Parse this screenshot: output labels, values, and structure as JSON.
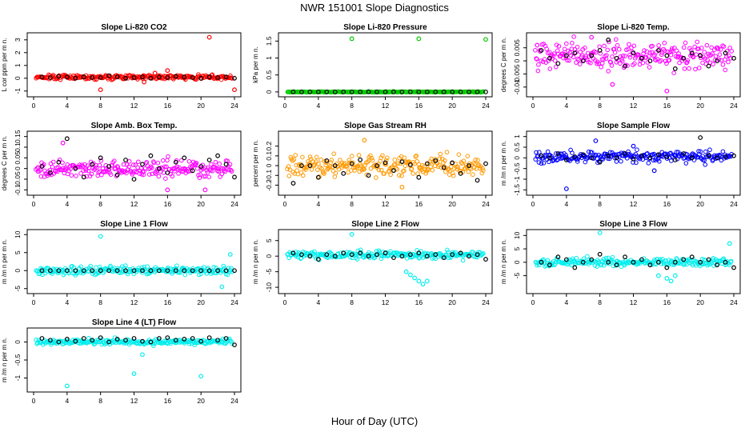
{
  "figure": {
    "title": "NWR  151001  Slope Diagnostics",
    "xlabel": "Hour of Day (UTC)"
  },
  "chart_data": [
    {
      "type": "scatter",
      "title": "Slope Li-820 CO2",
      "ylabel": "L cor ppm per m n.",
      "color": "#ff0000",
      "xlim": [
        0,
        24
      ],
      "ylim": [
        -1.2,
        3.3
      ],
      "yticks": [
        -1,
        0,
        1,
        2,
        3
      ],
      "xticks": [
        0,
        4,
        8,
        12,
        16,
        20,
        24
      ],
      "base": 0.1,
      "spread": 0.15,
      "series": [
        {
          "name": "individual",
          "x": [
            8,
            13.2,
            14.5,
            16,
            21,
            24
          ],
          "y": [
            -0.9,
            -0.3,
            0.4,
            0.6,
            3.2,
            -0.9
          ]
        },
        {
          "name": "hourly mean",
          "color": "#000000",
          "x": [
            1,
            2,
            3,
            4,
            5,
            6,
            7,
            8,
            9,
            10,
            11,
            12,
            13,
            14,
            15,
            16,
            17,
            18,
            19,
            20,
            21,
            22,
            23,
            24
          ],
          "y": [
            0.1,
            0.05,
            0.15,
            0.1,
            0.0,
            0.1,
            0.05,
            0.05,
            0.2,
            0.1,
            0.0,
            0.05,
            0.1,
            0.0,
            0.1,
            0.05,
            0.15,
            0.1,
            0.05,
            0.0,
            0.1,
            0.05,
            0.1,
            0.0
          ]
        }
      ]
    },
    {
      "type": "scatter",
      "title": "Slope Li-820 Pressure",
      "ylabel": "kPa per m n.",
      "color": "#00cc00",
      "xlim": [
        0,
        24
      ],
      "ylim": [
        -0.05,
        1.65
      ],
      "yticks": [
        0.0,
        0.5,
        1.0,
        1.5
      ],
      "xticks": [
        0,
        4,
        8,
        12,
        16,
        20,
        24
      ],
      "base": 0.0,
      "spread": 0.01,
      "series": [
        {
          "name": "individual",
          "x": [
            8,
            16,
            24
          ],
          "y": [
            1.57,
            1.57,
            1.55
          ]
        },
        {
          "name": "hourly mean",
          "color": "#000000",
          "x": [
            1,
            2,
            3,
            4,
            5,
            6,
            7,
            8,
            9,
            10,
            11,
            12,
            13,
            14,
            15,
            16,
            17,
            18,
            19,
            20,
            21,
            22,
            23,
            24
          ],
          "y": [
            0,
            0,
            0,
            0,
            0,
            0,
            0,
            0,
            0,
            0,
            0,
            0,
            0,
            0,
            0,
            0,
            0,
            0,
            0,
            0,
            0,
            0,
            0,
            0
          ]
        }
      ]
    },
    {
      "type": "scatter",
      "title": "Slope Li-820 Temp.",
      "ylabel": "degrees C per m n.",
      "color": "#ff00ff",
      "xlim": [
        0,
        24
      ],
      "ylim": [
        -0.0125,
        0.0095
      ],
      "yticks": [
        -0.01,
        -0.005,
        0.0,
        0.005
      ],
      "xticks": [
        0,
        4,
        8,
        12,
        16,
        20,
        24
      ],
      "base": 0.002,
      "spread": 0.004,
      "series": [
        {
          "name": "individual",
          "x": [
            7,
            9.5,
            16,
            0.5
          ],
          "y": [
            0.009,
            -0.009,
            -0.0115,
            0.006
          ]
        },
        {
          "name": "hourly mean",
          "color": "#000000",
          "x": [
            1,
            2,
            3,
            4,
            5,
            6,
            7,
            8,
            9,
            10,
            11,
            12,
            13,
            14,
            15,
            16,
            17,
            18,
            19,
            20,
            21,
            22,
            23,
            24
          ],
          "y": [
            0.004,
            0.001,
            -0.001,
            0.002,
            0.003,
            0.0,
            0.002,
            0.004,
            0.008,
            0.001,
            -0.002,
            0.003,
            0.001,
            0.0,
            0.004,
            0.002,
            -0.003,
            0.001,
            0.003,
            0.002,
            -0.002,
            0.0,
            0.003,
            0.001
          ]
        }
      ]
    },
    {
      "type": "scatter",
      "title": "Slope Amb. Box Temp.",
      "ylabel": "degrees C per m n.",
      "color": "#ff00ff",
      "xlim": [
        0,
        24
      ],
      "ylim": [
        -0.11,
        0.16
      ],
      "yticks": [
        -0.1,
        -0.05,
        0.0,
        0.05,
        0.1,
        0.15
      ],
      "xticks": [
        0,
        4,
        8,
        12,
        16,
        20,
        24
      ],
      "base": 0.0,
      "spread": 0.035,
      "series": [
        {
          "name": "individual",
          "x": [
            3.5,
            16,
            20.5
          ],
          "y": [
            0.12,
            -0.1,
            -0.1
          ]
        },
        {
          "name": "hourly mean",
          "color": "#000000",
          "x": [
            1,
            2,
            3,
            4,
            5,
            6,
            7,
            8,
            9,
            10,
            11,
            12,
            13,
            14,
            15,
            16,
            17,
            18,
            19,
            20,
            21,
            22,
            23,
            24
          ],
          "y": [
            0.01,
            -0.02,
            0.03,
            0.14,
            0.0,
            -0.04,
            0.02,
            0.05,
            0.01,
            -0.03,
            0.04,
            -0.05,
            0.02,
            0.06,
            0.0,
            -0.02,
            0.03,
            0.05,
            -0.01,
            0.01,
            0.04,
            0.06,
            0.02,
            -0.04
          ]
        }
      ]
    },
    {
      "type": "scatter",
      "title": "Slope Gas Stream RH",
      "ylabel": "percent per m n.",
      "color": "#ff9900",
      "xlim": [
        0,
        24
      ],
      "ylim": [
        -0.27,
        0.32
      ],
      "yticks": [
        -0.2,
        -0.1,
        0.0,
        0.1,
        0.2
      ],
      "xticks": [
        0,
        4,
        8,
        12,
        16,
        20,
        24
      ],
      "base": 0.0,
      "spread": 0.09,
      "series": [
        {
          "name": "individual",
          "x": [
            9.5,
            14
          ],
          "y": [
            0.26,
            -0.22
          ]
        },
        {
          "name": "hourly mean",
          "color": "#000000",
          "x": [
            1,
            2,
            3,
            4,
            5,
            6,
            7,
            8,
            9,
            10,
            11,
            12,
            13,
            14,
            15,
            16,
            17,
            18,
            19,
            20,
            21,
            22,
            23,
            24
          ],
          "y": [
            -0.18,
            0.0,
            0.0,
            -0.12,
            0.05,
            0.0,
            -0.08,
            0.02,
            0.06,
            -0.1,
            0.0,
            0.03,
            -0.05,
            0.04,
            0.01,
            -0.12,
            0.02,
            0.05,
            -0.02,
            0.03,
            -0.08,
            0.0,
            -0.15,
            0.02
          ]
        }
      ]
    },
    {
      "type": "scatter",
      "title": "Slope Sample Flow",
      "ylabel": "m /m n per m n.",
      "color": "#0000ff",
      "xlim": [
        0,
        24
      ],
      "ylim": [
        -1.6,
        1.1
      ],
      "yticks": [
        -1.5,
        -1.0,
        -0.5,
        0.0,
        0.5,
        1.0
      ],
      "xticks": [
        0,
        4,
        8,
        12,
        16,
        20,
        24
      ],
      "base": 0.05,
      "spread": 0.22,
      "series": [
        {
          "name": "individual",
          "x": [
            4,
            7.5,
            12,
            14.5
          ],
          "y": [
            -1.45,
            0.8,
            0.55,
            -0.6
          ]
        },
        {
          "name": "hourly mean",
          "color": "#000000",
          "x": [
            1,
            2,
            3,
            4,
            5,
            6,
            7,
            8,
            9,
            10,
            11,
            12,
            13,
            14,
            15,
            16,
            17,
            18,
            19,
            20,
            21,
            22,
            23,
            24
          ],
          "y": [
            0.1,
            0.0,
            0.2,
            -0.1,
            0.05,
            0.15,
            0.0,
            -0.2,
            0.1,
            0.0,
            0.2,
            -0.05,
            0.1,
            0.0,
            0.15,
            0.05,
            -0.1,
            0.2,
            0.0,
            0.95,
            0.1,
            0.0,
            0.05,
            0.1
          ]
        }
      ]
    },
    {
      "type": "scatter",
      "title": "Slope Line 1 Flow",
      "ylabel": "m /m n per m n.",
      "color": "#00eeee",
      "xlim": [
        0,
        24
      ],
      "ylim": [
        -5.5,
        10.5
      ],
      "yticks": [
        -5,
        0,
        5,
        10
      ],
      "xticks": [
        0,
        4,
        8,
        12,
        16,
        20,
        24
      ],
      "base": 0.0,
      "spread": 1.0,
      "series": [
        {
          "name": "individual",
          "x": [
            8,
            23.5,
            22.5
          ],
          "y": [
            9.5,
            4.5,
            -4.5
          ]
        },
        {
          "name": "hourly mean",
          "color": "#000000",
          "x": [
            1,
            2,
            3,
            4,
            5,
            6,
            7,
            8,
            9,
            10,
            11,
            12,
            13,
            14,
            15,
            16,
            17,
            18,
            19,
            20,
            21,
            22,
            23,
            24
          ],
          "y": [
            0,
            0,
            0,
            0,
            0,
            0,
            0,
            0,
            0,
            0,
            0,
            0,
            0,
            0,
            0,
            0,
            0,
            0,
            0,
            0,
            0,
            0,
            0,
            0
          ]
        }
      ]
    },
    {
      "type": "scatter",
      "title": "Slope Line 2 Flow",
      "ylabel": "m /m n per m n.",
      "color": "#00eeee",
      "xlim": [
        0,
        24
      ],
      "ylim": [
        -11,
        7.5
      ],
      "yticks": [
        -10,
        -5,
        0,
        5
      ],
      "xticks": [
        0,
        4,
        8,
        12,
        16,
        20,
        24
      ],
      "base": 0.5,
      "spread": 1.0,
      "series": [
        {
          "name": "individual",
          "x": [
            8,
            14.5,
            15,
            15.5,
            16,
            16.5,
            17
          ],
          "y": [
            7,
            -5,
            -6,
            -7,
            -8,
            -9,
            -8
          ]
        },
        {
          "name": "hourly mean",
          "color": "#000000",
          "x": [
            1,
            2,
            3,
            4,
            5,
            6,
            7,
            8,
            9,
            10,
            11,
            12,
            13,
            14,
            15,
            16,
            17,
            18,
            19,
            20,
            21,
            22,
            23,
            24
          ],
          "y": [
            1,
            0.5,
            0,
            -1,
            0.5,
            0,
            1,
            0.5,
            1,
            0,
            0.5,
            1,
            -0.5,
            0,
            0.5,
            1,
            0,
            0.5,
            -0.5,
            0.5,
            1,
            0,
            0.5,
            -1
          ]
        }
      ]
    },
    {
      "type": "scatter",
      "title": "Slope Line 3 Flow",
      "ylabel": "m /m n per m n.",
      "color": "#00eeee",
      "xlim": [
        0,
        24
      ],
      "ylim": [
        -10.5,
        11
      ],
      "yticks": [
        -5,
        0,
        5,
        10
      ],
      "xticks": [
        0,
        4,
        8,
        12,
        16,
        20,
        24
      ],
      "base": 0.0,
      "spread": 1.2,
      "series": [
        {
          "name": "individual",
          "x": [
            8,
            15,
            16,
            16.5,
            17,
            23.5
          ],
          "y": [
            11,
            -5,
            -6,
            -7,
            -5,
            7
          ]
        },
        {
          "name": "hourly mean",
          "color": "#000000",
          "x": [
            1,
            2,
            3,
            4,
            5,
            6,
            7,
            8,
            9,
            10,
            11,
            12,
            13,
            14,
            15,
            16,
            17,
            18,
            19,
            20,
            21,
            22,
            23,
            24
          ],
          "y": [
            0,
            -1,
            2,
            1,
            -2,
            0,
            1,
            3,
            0,
            -1,
            2,
            0,
            1,
            -1,
            0,
            -2,
            0,
            1,
            2,
            0,
            1,
            -1,
            0,
            -2
          ]
        }
      ]
    },
    {
      "type": "scatter",
      "title": "Slope Line 4 (LT) Flow",
      "ylabel": "m /m n per m n.",
      "color": "#00eeee",
      "xlim": [
        0,
        24
      ],
      "ylim": [
        -1.3,
        0.3
      ],
      "yticks": [
        -1.0,
        -0.5,
        0.0
      ],
      "xticks": [
        0,
        4,
        8,
        12,
        16,
        20,
        24
      ],
      "base": 0.0,
      "spread": 0.07,
      "series": [
        {
          "name": "individual",
          "x": [
            4,
            12,
            13,
            20
          ],
          "y": [
            -1.22,
            -0.88,
            -0.35,
            -0.95
          ]
        },
        {
          "name": "hourly mean",
          "color": "#000000",
          "x": [
            1,
            2,
            3,
            4,
            5,
            6,
            7,
            8,
            9,
            10,
            11,
            12,
            13,
            14,
            15,
            16,
            17,
            18,
            19,
            20,
            21,
            22,
            23,
            24
          ],
          "y": [
            0.1,
            0.05,
            0.0,
            0.08,
            0.02,
            0.1,
            0.05,
            0.12,
            0.0,
            0.08,
            0.05,
            0.1,
            0.02,
            0.0,
            0.1,
            0.12,
            0.05,
            0.08,
            0.1,
            0.02,
            0.12,
            0.05,
            0.1,
            -0.08
          ]
        }
      ]
    }
  ]
}
